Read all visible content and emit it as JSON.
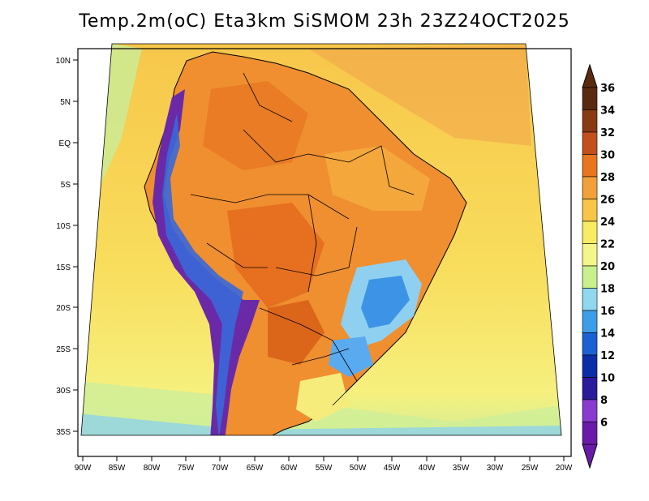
{
  "title": "Temp.2m(oC) Eta3km SiSMOM 23h 23Z24OCT2025",
  "lat_labels": [
    "10N",
    "5N",
    "EQ",
    "5S",
    "10S",
    "15S",
    "20S",
    "25S",
    "30S",
    "35S"
  ],
  "lon_labels": [
    "90W",
    "85W",
    "80W",
    "75W",
    "70W",
    "65W",
    "60W",
    "55W",
    "50W",
    "45W",
    "40W",
    "35W",
    "30W",
    "25W",
    "20W"
  ],
  "colorbar": {
    "labels": [
      "36",
      "34",
      "32",
      "30",
      "28",
      "26",
      "24",
      "22",
      "20",
      "18",
      "16",
      "14",
      "12",
      "10",
      "8",
      "6"
    ],
    "colors": [
      "#5a2a10",
      "#8a3a12",
      "#c2501a",
      "#e8761f",
      "#f3a03a",
      "#f7c646",
      "#faec62",
      "#f4f58a",
      "#c8f08c",
      "#8fd8f0",
      "#3d9ee8",
      "#1a62d4",
      "#0a2ea8",
      "#2a1a9c",
      "#8a3ad0",
      "#6a1aa8"
    ]
  },
  "colors": {
    "ocean_warm": "#f6c74a",
    "ocean_mid": "#f8e264",
    "ocean_cool": "#cdeda0",
    "land_hot": "#ee8a2c",
    "land_warm": "#f2a53c",
    "highland": "#3d8ae0",
    "andes": "#6a2aa8"
  }
}
